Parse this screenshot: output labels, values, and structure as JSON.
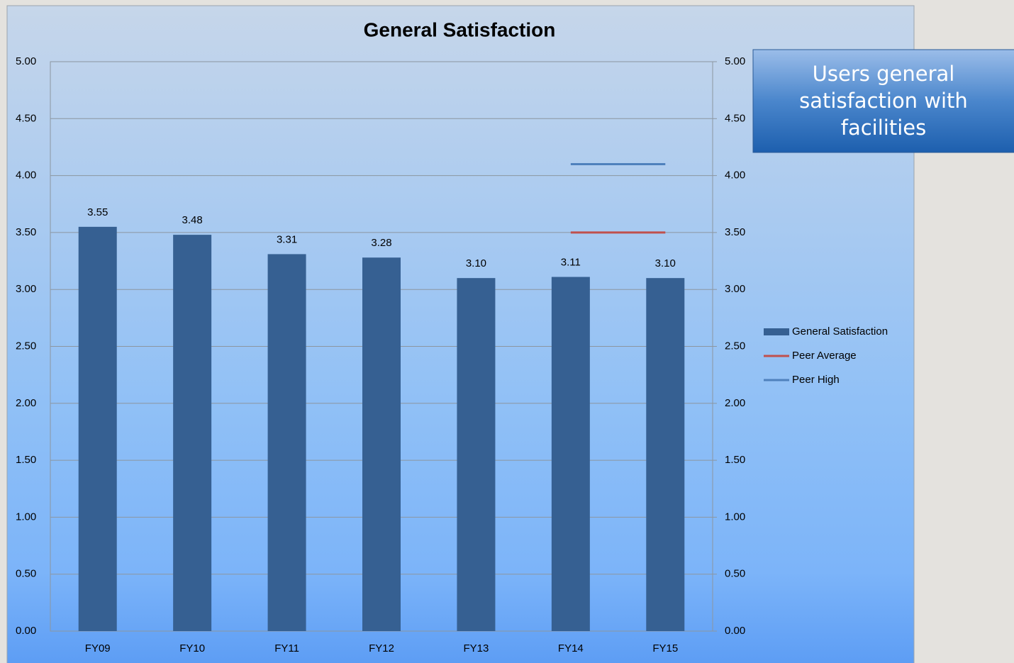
{
  "chart_data": {
    "type": "bar",
    "title": "General Satisfaction",
    "annotation": [
      "Users general",
      "satisfaction with",
      "facilities"
    ],
    "categories": [
      "FY09",
      "FY10",
      "FY11",
      "FY12",
      "FY13",
      "FY14",
      "FY15"
    ],
    "series": [
      {
        "name": "General Satisfaction",
        "type": "bar",
        "color": "#366092",
        "values": [
          3.55,
          3.48,
          3.31,
          3.28,
          3.1,
          3.11,
          3.1
        ],
        "value_labels": [
          "3.55",
          "3.48",
          "3.31",
          "3.28",
          "3.10",
          "3.11",
          "3.10"
        ]
      },
      {
        "name": "Peer Average",
        "type": "line",
        "axis": "y2",
        "color": "#c0504d",
        "values": [
          null,
          null,
          null,
          null,
          null,
          3.5,
          3.5
        ]
      },
      {
        "name": "Peer High",
        "type": "line",
        "axis": "y2",
        "color": "#4f81bd",
        "values": [
          null,
          null,
          null,
          null,
          null,
          4.1,
          4.1
        ]
      }
    ],
    "ylim": [
      0,
      5
    ],
    "yticks": [
      {
        "value": 0,
        "label": "0.00"
      },
      {
        "value": 0.5,
        "label": "0.50"
      },
      {
        "value": 1,
        "label": "1.00"
      },
      {
        "value": 1.5,
        "label": "1.50"
      },
      {
        "value": 2,
        "label": "2.00"
      },
      {
        "value": 2.5,
        "label": "2.50"
      },
      {
        "value": 3,
        "label": "3.00"
      },
      {
        "value": 3.5,
        "label": "3.50"
      },
      {
        "value": 4,
        "label": "4.00"
      },
      {
        "value": 4.5,
        "label": "4.50"
      },
      {
        "value": 5,
        "label": "5.00"
      }
    ],
    "y2lim": [
      0,
      5
    ],
    "y2ticks": [
      {
        "value": 0,
        "label": "0.00"
      },
      {
        "value": 0.5,
        "label": "0.50"
      },
      {
        "value": 1,
        "label": "1.00"
      },
      {
        "value": 1.5,
        "label": "1.50"
      },
      {
        "value": 2,
        "label": "2.00"
      },
      {
        "value": 2.5,
        "label": "2.50"
      },
      {
        "value": 3,
        "label": "3.00"
      },
      {
        "value": 3.5,
        "label": "3.50"
      },
      {
        "value": 4,
        "label": "4.00"
      },
      {
        "value": 4.5,
        "label": "4.50"
      },
      {
        "value": 5,
        "label": "5.00"
      }
    ],
    "grid": true,
    "legend": "right"
  }
}
